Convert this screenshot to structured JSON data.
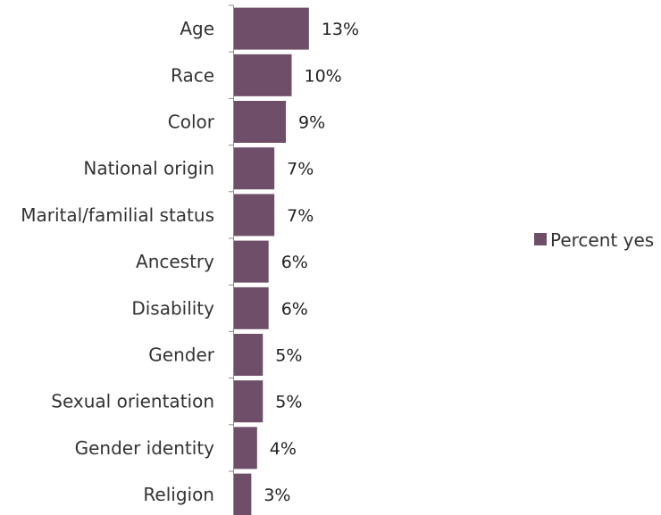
{
  "chart_data": {
    "type": "bar",
    "orientation": "horizontal",
    "categories": [
      "Age",
      "Race",
      "Color",
      "National origin",
      "Marital/familial status",
      "Ancestry",
      "Disability",
      "Gender",
      "Sexual orientation",
      "Gender identity",
      "Religion"
    ],
    "series": [
      {
        "name": "Percent yes",
        "values": [
          13,
          10,
          9,
          7,
          7,
          6,
          6,
          5,
          5,
          4,
          3
        ],
        "data_labels": [
          "13%",
          "10%",
          "9%",
          "7%",
          "7%",
          "6%",
          "6%",
          "5%",
          "5%",
          "4%",
          "3%"
        ],
        "color": "#6e4e68"
      }
    ],
    "xlim": [
      0,
      100
    ],
    "grid": false,
    "legend": "right"
  }
}
